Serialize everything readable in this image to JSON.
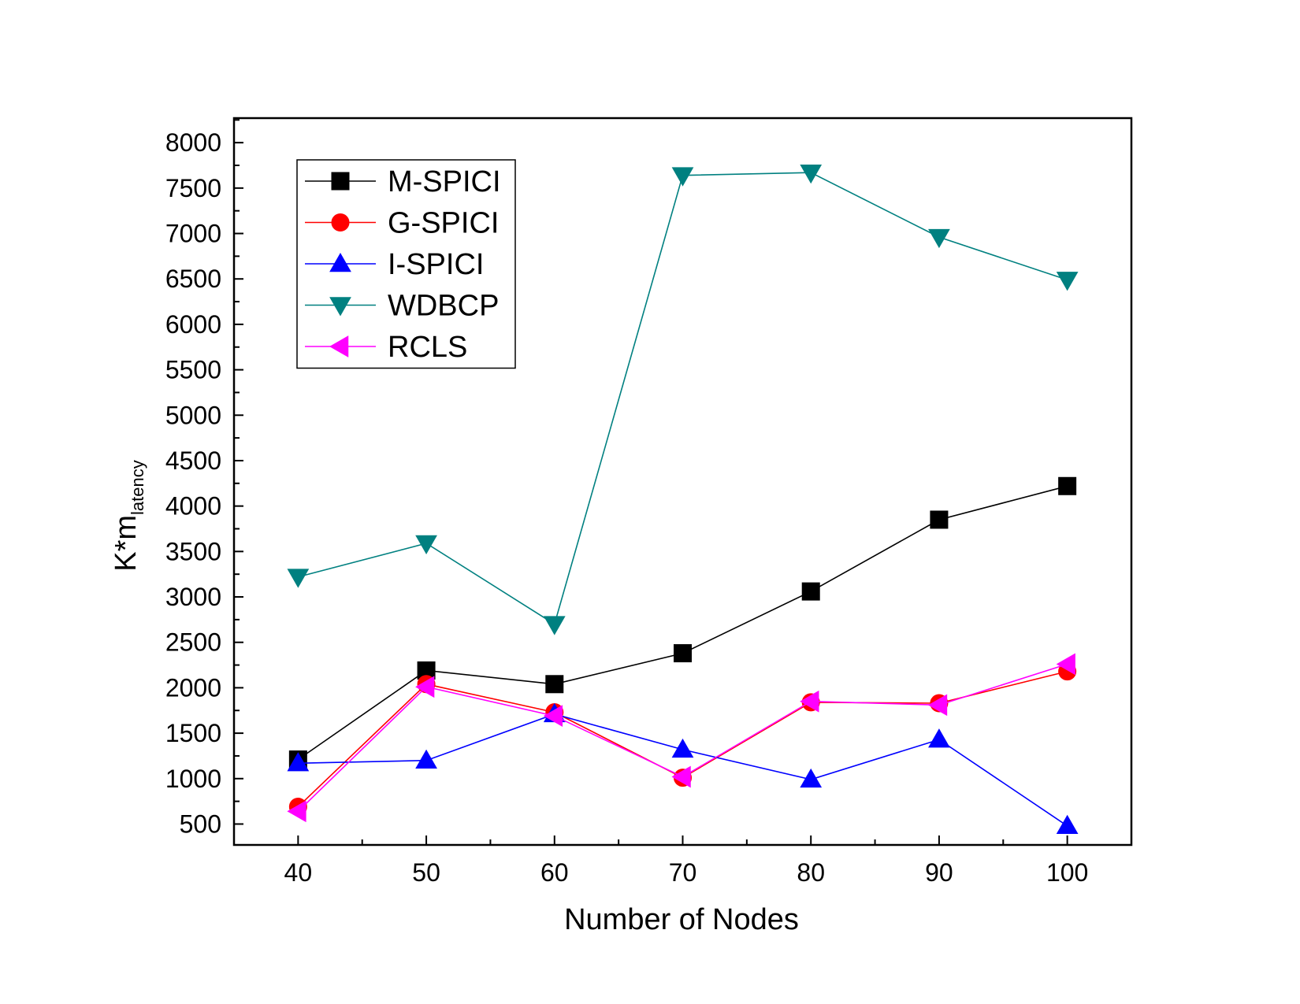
{
  "chart_data": {
    "type": "line",
    "title": "",
    "xlabel": "Number of Nodes",
    "ylabel_main": "K*m",
    "ylabel_sub": "latency",
    "x": [
      40,
      50,
      60,
      70,
      80,
      90,
      100
    ],
    "xlim": [
      35,
      105
    ],
    "ylim": [
      270,
      8270
    ],
    "xticks": [
      40,
      50,
      60,
      70,
      80,
      90,
      100
    ],
    "yticks": [
      500,
      1000,
      1500,
      2000,
      2500,
      3000,
      3500,
      4000,
      4500,
      5000,
      5500,
      6000,
      6500,
      7000,
      7500,
      8000
    ],
    "grid": false,
    "legend_position": "top-left",
    "series": [
      {
        "name": "M-SPICI",
        "marker": "square",
        "color": "#000000",
        "values": [
          1210,
          2190,
          2040,
          2380,
          3060,
          3850,
          4220
        ]
      },
      {
        "name": "G-SPICI",
        "marker": "circle",
        "color": "#ff0000",
        "values": [
          690,
          2040,
          1730,
          1010,
          1840,
          1830,
          2180
        ]
      },
      {
        "name": "I-SPICI",
        "marker": "triangle-up",
        "color": "#0000ff",
        "values": [
          1170,
          1200,
          1710,
          1320,
          990,
          1430,
          480
        ]
      },
      {
        "name": "WDBCP",
        "marker": "triangle-down",
        "color": "#008080",
        "values": [
          3220,
          3590,
          2700,
          7640,
          7670,
          6960,
          6490
        ]
      },
      {
        "name": "RCLS",
        "marker": "triangle-left",
        "color": "#ff00ff",
        "values": [
          640,
          2010,
          1690,
          1020,
          1850,
          1810,
          2260
        ]
      }
    ]
  }
}
